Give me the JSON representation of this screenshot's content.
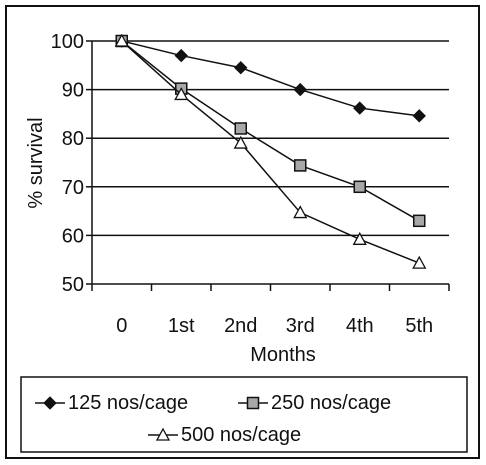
{
  "chart_data": {
    "type": "line",
    "categories": [
      "0",
      "1st",
      "2nd",
      "3rd",
      "4th",
      "5th"
    ],
    "xlabel": "Months",
    "ylabel": "% survival",
    "ylim": [
      50,
      100
    ],
    "yticks": [
      50,
      60,
      70,
      80,
      90,
      100
    ],
    "grid": "horizontal",
    "legend_position": "bottom",
    "series": [
      {
        "name": "125 nos/cage",
        "marker": "diamond",
        "values": [
          100,
          97,
          94.5,
          90,
          86.2,
          84.6
        ]
      },
      {
        "name": "250 nos/cage",
        "marker": "square",
        "values": [
          100,
          90.2,
          82,
          74.4,
          70,
          63
        ]
      },
      {
        "name": "500 nos/cage",
        "marker": "triangle",
        "values": [
          100,
          89,
          79,
          64.7,
          59.2,
          54.3
        ]
      }
    ]
  }
}
